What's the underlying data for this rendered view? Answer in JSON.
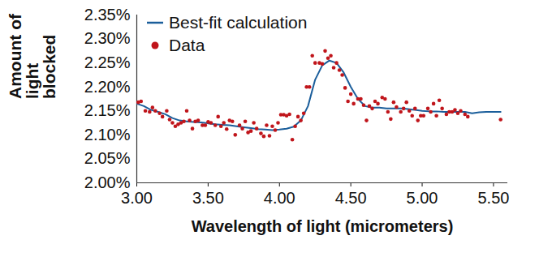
{
  "chart_data": {
    "type": "line",
    "x_label": "Wavelength of light (micrometers)",
    "y_label": "Amount of light blocked",
    "xlim": [
      3.0,
      5.6
    ],
    "xticks": [
      {
        "value": 3,
        "label": "3.00"
      },
      {
        "value": 3.5,
        "label": "3.50"
      },
      {
        "value": 4,
        "label": "4.00"
      },
      {
        "value": 4.5,
        "label": "4.50"
      },
      {
        "value": 5,
        "label": "5.00"
      },
      {
        "value": 5.5,
        "label": "5.50"
      }
    ],
    "ylim": [
      2.0,
      2.35
    ],
    "yticks": [
      {
        "value": 2.0,
        "label": "2.00%"
      },
      {
        "value": 2.05,
        "label": "2.05%"
      },
      {
        "value": 2.1,
        "label": "2.10%"
      },
      {
        "value": 2.15,
        "label": "2.15%"
      },
      {
        "value": 2.2,
        "label": "2.20%"
      },
      {
        "value": 2.25,
        "label": "2.25%"
      },
      {
        "value": 2.3,
        "label": "2.30%"
      },
      {
        "value": 2.35,
        "label": "2.35%"
      }
    ],
    "legend": "top-left",
    "grid": false,
    "series": [
      {
        "name": "Best-fit calculation",
        "type": "line",
        "color": "#1b5e9b",
        "line_style": "solid",
        "x": [
          3.0,
          3.05,
          3.1,
          3.15,
          3.2,
          3.25,
          3.3,
          3.35,
          3.4,
          3.45,
          3.5,
          3.55,
          3.6,
          3.65,
          3.7,
          3.75,
          3.8,
          3.85,
          3.9,
          3.95,
          4.0,
          4.05,
          4.1,
          4.15,
          4.2,
          4.25,
          4.3,
          4.35,
          4.4,
          4.45,
          4.5,
          4.55,
          4.6,
          4.65,
          4.7,
          4.75,
          4.8,
          4.85,
          4.9,
          4.95,
          5.0,
          5.05,
          5.1,
          5.15,
          5.2,
          5.25,
          5.3,
          5.35,
          5.4,
          5.45,
          5.5,
          5.55
        ],
        "values": [
          2.165,
          2.16,
          2.152,
          2.148,
          2.143,
          2.135,
          2.13,
          2.128,
          2.127,
          2.126,
          2.124,
          2.122,
          2.121,
          2.12,
          2.118,
          2.116,
          2.114,
          2.112,
          2.111,
          2.11,
          2.111,
          2.113,
          2.117,
          2.13,
          2.16,
          2.215,
          2.245,
          2.255,
          2.25,
          2.23,
          2.2,
          2.175,
          2.16,
          2.157,
          2.157,
          2.155,
          2.155,
          2.155,
          2.154,
          2.152,
          2.15,
          2.149,
          2.149,
          2.148,
          2.148,
          2.148,
          2.148,
          2.145,
          2.147,
          2.148,
          2.148,
          2.148
        ]
      },
      {
        "name": "Data",
        "type": "scatter",
        "color": "#c0151b",
        "marker": "circle",
        "x": [
          3.01,
          3.03,
          3.06,
          3.09,
          3.11,
          3.13,
          3.16,
          3.18,
          3.21,
          3.23,
          3.25,
          3.27,
          3.29,
          3.31,
          3.33,
          3.35,
          3.37,
          3.39,
          3.41,
          3.43,
          3.46,
          3.48,
          3.5,
          3.52,
          3.55,
          3.57,
          3.59,
          3.61,
          3.63,
          3.65,
          3.67,
          3.69,
          3.72,
          3.74,
          3.76,
          3.78,
          3.8,
          3.82,
          3.84,
          3.87,
          3.89,
          3.91,
          3.93,
          3.95,
          3.97,
          3.99,
          4.01,
          4.03,
          4.05,
          4.07,
          4.09,
          4.11,
          4.13,
          4.15,
          4.17,
          4.19,
          4.21,
          4.23,
          4.25,
          4.28,
          4.3,
          4.32,
          4.34,
          4.36,
          4.38,
          4.4,
          4.42,
          4.44,
          4.46,
          4.48,
          4.5,
          4.52,
          4.55,
          4.57,
          4.59,
          4.61,
          4.63,
          4.65,
          4.67,
          4.69,
          4.72,
          4.74,
          4.76,
          4.78,
          4.8,
          4.82,
          4.85,
          4.87,
          4.89,
          4.91,
          4.93,
          4.95,
          4.97,
          4.99,
          5.01,
          5.04,
          5.06,
          5.08,
          5.1,
          5.12,
          5.14,
          5.17,
          5.19,
          5.21,
          5.23,
          5.25,
          5.27,
          5.3,
          5.32,
          5.55
        ],
        "values": [
          2.168,
          2.17,
          2.15,
          2.148,
          2.157,
          2.15,
          2.145,
          2.138,
          2.15,
          2.132,
          2.125,
          2.118,
          2.122,
          2.125,
          2.128,
          2.15,
          2.13,
          2.113,
          2.128,
          2.13,
          2.12,
          2.12,
          2.127,
          2.125,
          2.12,
          2.138,
          2.118,
          2.125,
          2.112,
          2.13,
          2.128,
          2.1,
          2.12,
          2.113,
          2.128,
          2.105,
          2.108,
          2.125,
          2.113,
          2.103,
          2.097,
          2.12,
          2.098,
          2.118,
          2.11,
          2.125,
          2.142,
          2.142,
          2.14,
          2.143,
          2.09,
          2.118,
          2.138,
          2.13,
          2.145,
          2.2,
          2.2,
          2.265,
          2.25,
          2.25,
          2.248,
          2.275,
          2.26,
          2.265,
          2.24,
          2.25,
          2.235,
          2.225,
          2.198,
          2.17,
          2.185,
          2.165,
          2.175,
          2.175,
          2.162,
          2.13,
          2.16,
          2.155,
          2.17,
          2.165,
          2.178,
          2.175,
          2.148,
          2.133,
          2.168,
          2.158,
          2.148,
          2.155,
          2.168,
          2.15,
          2.14,
          2.155,
          2.13,
          2.14,
          2.14,
          2.155,
          2.148,
          2.165,
          2.14,
          2.172,
          2.155,
          2.143,
          2.148,
          2.148,
          2.152,
          2.145,
          2.15,
          2.143,
          2.138,
          2.132
        ]
      }
    ]
  }
}
